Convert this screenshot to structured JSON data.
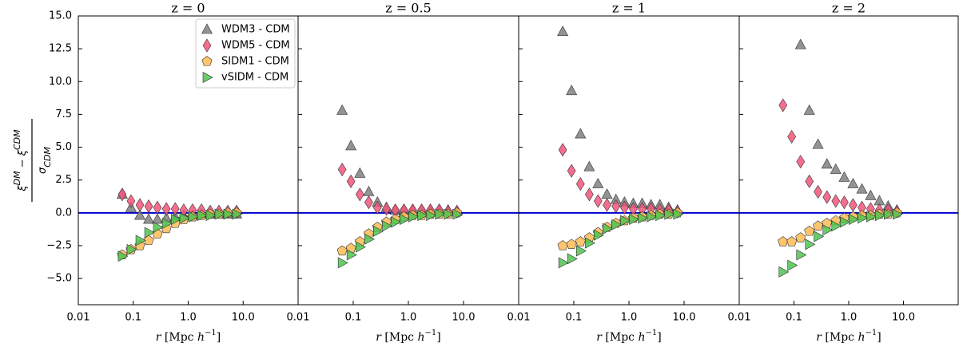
{
  "chart_data": [
    {
      "type": "scatter",
      "title": "z = 0",
      "x": [
        0.063,
        0.091,
        0.132,
        0.191,
        0.275,
        0.4,
        0.58,
        0.83,
        1.2,
        1.74,
        2.51,
        3.63,
        5.25,
        7.59
      ],
      "xlim": [
        0.01,
        100
      ],
      "log_x": true,
      "xticks": [
        0.01,
        0.1,
        {
          "value": 1,
          "label": "1.0"
        },
        {
          "value": 10,
          "label": "10.0"
        }
      ],
      "ylim": [
        -7,
        15
      ],
      "yticks": [
        {
          "value": 15,
          "label": "15.0"
        },
        12.5,
        {
          "value": 10,
          "label": "10.0"
        },
        7.5,
        {
          "value": 5,
          "label": "5.0"
        },
        2.5,
        {
          "value": 0,
          "label": "0.0"
        },
        {
          "value": -2.5,
          "label": "−2.5"
        },
        {
          "value": -5,
          "label": "−5.0"
        }
      ],
      "show_ytick_labels": true,
      "xlabel": [
        "r",
        " [Mpc ",
        "h",
        "−1",
        "]"
      ],
      "ylabel": {
        "numerator": [
          "ξ",
          "DM",
          " − ξ",
          "CDM"
        ],
        "denominator": [
          "σ",
          "CDM"
        ]
      },
      "hline": {
        "y": 0,
        "color": "#0000cc"
      },
      "legend": "upper right",
      "series": [
        {
          "name": "WDM3 - CDM",
          "marker": "triangle-up",
          "color": "#808080",
          "values": [
            1.4,
            0.4,
            -0.2,
            -0.5,
            -0.5,
            -0.4,
            -0.3,
            -0.2,
            -0.2,
            -0.1,
            -0.1,
            -0.1,
            -0.1,
            -0.1
          ]
        },
        {
          "name": "WDM5 - CDM",
          "marker": "diamond",
          "color": "#f2557a",
          "values": [
            1.4,
            0.9,
            0.6,
            0.5,
            0.4,
            0.3,
            0.3,
            0.2,
            0.2,
            0.2,
            0.1,
            0.1,
            0.1,
            0.1
          ]
        },
        {
          "name": "SIDM1 - CDM",
          "marker": "pentagon",
          "color": "#ffbb55",
          "values": [
            -3.2,
            -2.8,
            -2.5,
            -2.1,
            -1.6,
            -1.2,
            -0.8,
            -0.5,
            -0.3,
            -0.2,
            -0.1,
            -0.1,
            0,
            0
          ]
        },
        {
          "name": "vSIDM - CDM",
          "marker": "triangle-right",
          "color": "#4fc34f",
          "values": [
            -3.3,
            -2.8,
            -2.1,
            -1.5,
            -1.1,
            -0.8,
            -0.5,
            -0.4,
            -0.3,
            -0.2,
            -0.2,
            -0.1,
            -0.1,
            -0.1
          ]
        }
      ]
    },
    {
      "type": "scatter",
      "title": "z = 0.5",
      "x": [
        0.063,
        0.091,
        0.132,
        0.191,
        0.275,
        0.4,
        0.58,
        0.83,
        1.2,
        1.74,
        2.51,
        3.63,
        5.25,
        7.59
      ],
      "xlim": [
        0.01,
        100
      ],
      "log_x": true,
      "xticks": [
        0.01,
        0.1,
        {
          "value": 1,
          "label": "1.0"
        },
        {
          "value": 10,
          "label": "10.0"
        }
      ],
      "ylim": [
        -7,
        15
      ],
      "yticks": [
        15,
        12.5,
        10,
        7.5,
        5,
        2.5,
        0,
        -2.5,
        -5
      ],
      "show_ytick_labels": false,
      "xlabel": [
        "r",
        " [Mpc ",
        "h",
        "−1",
        "]"
      ],
      "hline": {
        "y": 0,
        "color": "#0000cc"
      },
      "series": [
        {
          "marker": "triangle-up",
          "color": "#808080",
          "values": [
            7.8,
            5.1,
            3.0,
            1.6,
            0.8,
            0.4,
            0.2,
            0.2,
            0.2,
            0.2,
            0.2,
            0.2,
            0.2,
            0.1
          ]
        },
        {
          "marker": "diamond",
          "color": "#f2557a",
          "values": [
            3.3,
            2.4,
            1.4,
            0.8,
            0.4,
            0.3,
            0.2,
            0.2,
            0.2,
            0.2,
            0.2,
            0.2,
            0.1,
            0.1
          ]
        },
        {
          "marker": "pentagon",
          "color": "#ffbb55",
          "values": [
            -2.9,
            -2.7,
            -2.2,
            -1.6,
            -1.1,
            -0.7,
            -0.5,
            -0.3,
            -0.2,
            -0.2,
            -0.1,
            -0.1,
            -0.1,
            0
          ]
        },
        {
          "marker": "triangle-right",
          "color": "#4fc34f",
          "values": [
            -3.8,
            -3.2,
            -2.6,
            -2.0,
            -1.4,
            -1.0,
            -0.7,
            -0.5,
            -0.3,
            -0.2,
            -0.2,
            -0.1,
            -0.1,
            -0.1
          ]
        }
      ]
    },
    {
      "type": "scatter",
      "title": "z = 1",
      "x": [
        0.063,
        0.091,
        0.132,
        0.191,
        0.275,
        0.4,
        0.58,
        0.83,
        1.2,
        1.74,
        2.51,
        3.63,
        5.25,
        7.59
      ],
      "xlim": [
        0.01,
        100
      ],
      "log_x": true,
      "xticks": [
        0.01,
        0.1,
        {
          "value": 1,
          "label": "1.0"
        },
        {
          "value": 10,
          "label": "10.0"
        }
      ],
      "ylim": [
        -7,
        15
      ],
      "yticks": [
        15,
        12.5,
        10,
        7.5,
        5,
        2.5,
        0,
        -2.5,
        -5
      ],
      "show_ytick_labels": false,
      "xlabel": [
        "r",
        " [Mpc ",
        "h",
        "−1",
        "]"
      ],
      "hline": {
        "y": 0,
        "color": "#0000cc"
      },
      "series": [
        {
          "marker": "triangle-up",
          "color": "#808080",
          "values": [
            13.8,
            9.3,
            6.0,
            3.5,
            2.2,
            1.4,
            1.0,
            0.8,
            0.7,
            0.7,
            0.6,
            0.6,
            0.4,
            0.2
          ]
        },
        {
          "marker": "diamond",
          "color": "#f2557a",
          "values": [
            4.8,
            3.2,
            2.2,
            1.4,
            0.9,
            0.6,
            0.5,
            0.4,
            0.3,
            0.3,
            0.3,
            0.2,
            0.2,
            0.1
          ]
        },
        {
          "marker": "pentagon",
          "color": "#ffbb55",
          "values": [
            -2.5,
            -2.4,
            -2.2,
            -1.9,
            -1.5,
            -1.1,
            -0.8,
            -0.6,
            -0.4,
            -0.3,
            -0.2,
            -0.1,
            -0.1,
            0
          ]
        },
        {
          "marker": "triangle-right",
          "color": "#4fc34f",
          "values": [
            -3.8,
            -3.5,
            -2.9,
            -2.3,
            -1.7,
            -1.2,
            -0.9,
            -0.6,
            -0.5,
            -0.4,
            -0.3,
            -0.2,
            -0.1,
            -0.1
          ]
        }
      ]
    },
    {
      "type": "scatter",
      "title": "z = 2",
      "x": [
        0.063,
        0.091,
        0.132,
        0.191,
        0.275,
        0.4,
        0.58,
        0.83,
        1.2,
        1.74,
        2.51,
        3.63,
        5.25,
        7.59
      ],
      "xlim": [
        0.01,
        100
      ],
      "log_x": true,
      "xticks": [
        0.01,
        0.1,
        {
          "value": 1,
          "label": "1.0"
        },
        {
          "value": 10,
          "label": "10.0"
        }
      ],
      "ylim": [
        -7,
        15
      ],
      "yticks": [
        15,
        12.5,
        10,
        7.5,
        5,
        2.5,
        0,
        -2.5,
        -5
      ],
      "show_ytick_labels": false,
      "xlabel": [
        "r",
        " [Mpc ",
        "h",
        "−1",
        "]"
      ],
      "hline": {
        "y": 0,
        "color": "#0000cc"
      },
      "series": [
        {
          "marker": "triangle-up",
          "color": "#808080",
          "values": [
            null,
            null,
            12.8,
            7.8,
            5.2,
            3.7,
            3.3,
            2.7,
            2.2,
            1.8,
            1.3,
            0.9,
            0.5,
            0.2
          ]
        },
        {
          "marker": "diamond",
          "color": "#f2557a",
          "values": [
            8.2,
            5.8,
            3.9,
            2.4,
            1.6,
            1.2,
            0.9,
            0.8,
            0.6,
            0.4,
            0.3,
            0.2,
            0.2,
            0.1
          ]
        },
        {
          "marker": "pentagon",
          "color": "#ffbb55",
          "values": [
            -2.2,
            -2.2,
            -1.9,
            -1.4,
            -1.0,
            -0.8,
            -0.6,
            -0.4,
            -0.3,
            -0.2,
            -0.2,
            -0.1,
            -0.1,
            0
          ]
        },
        {
          "marker": "triangle-right",
          "color": "#4fc34f",
          "values": [
            -4.5,
            -4.0,
            -3.2,
            -2.4,
            -1.8,
            -1.3,
            -1.0,
            -0.7,
            -0.5,
            -0.4,
            -0.3,
            -0.2,
            -0.1,
            -0.1
          ]
        }
      ]
    }
  ]
}
